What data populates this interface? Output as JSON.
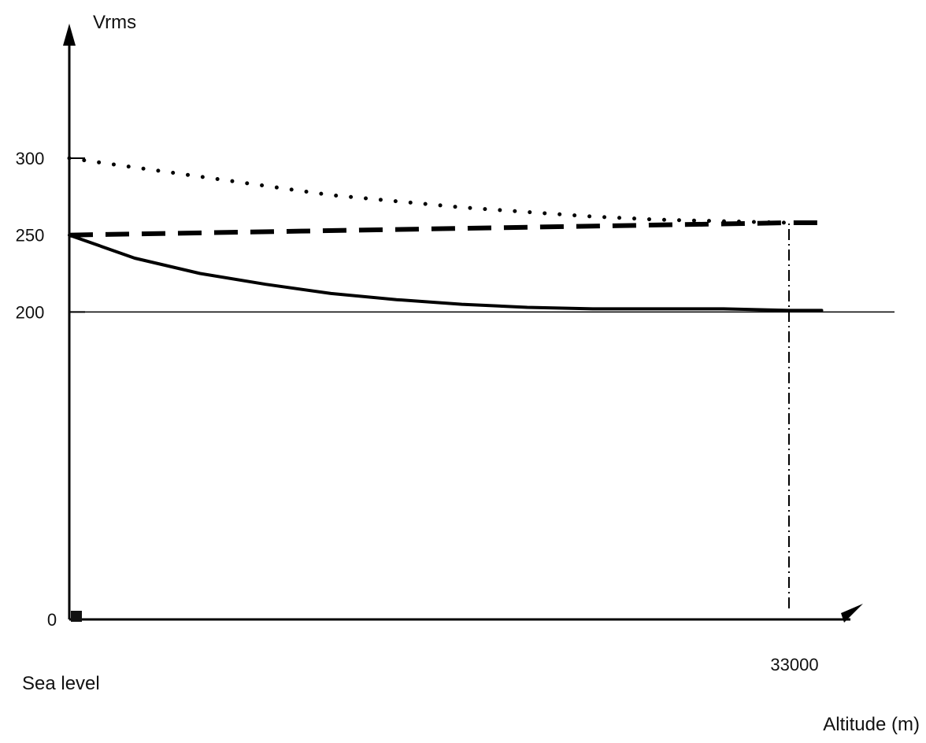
{
  "chart_data": {
    "type": "line",
    "ylabel": "Vrms",
    "xlabel": "Altitude (m)",
    "x_start_label": "Sea level",
    "xlim": [
      0,
      33000
    ],
    "ylim": [
      0,
      300
    ],
    "y_ticks": [
      {
        "value": 0,
        "label": "0"
      },
      {
        "value": 200,
        "label": "200"
      },
      {
        "value": 250,
        "label": "250"
      },
      {
        "value": 300,
        "label": "300"
      }
    ],
    "x_ticks": [
      {
        "value": 33000,
        "label": "33000"
      }
    ],
    "reference_lines": [
      {
        "axis": "y",
        "value": 200,
        "style": "solid-thin"
      },
      {
        "axis": "x",
        "value": 33000,
        "style": "dash-dot"
      }
    ],
    "series": [
      {
        "style": "dotted",
        "x": [
          0,
          3000,
          6000,
          9000,
          12000,
          15000,
          18000,
          21000,
          24000,
          27000,
          30000,
          33000,
          34500
        ],
        "y": [
          300,
          294,
          288,
          282,
          276,
          272,
          268,
          265,
          262,
          260,
          259,
          258,
          258
        ]
      },
      {
        "style": "dashed",
        "x": [
          0,
          33000,
          34500
        ],
        "y": [
          250,
          258,
          258
        ]
      },
      {
        "style": "solid",
        "x": [
          0,
          3000,
          6000,
          9000,
          12000,
          15000,
          18000,
          21000,
          24000,
          27000,
          30000,
          33000,
          34500
        ],
        "y": [
          250,
          235,
          225,
          218,
          212,
          208,
          205,
          203,
          202,
          202,
          202,
          201,
          201
        ]
      }
    ],
    "grid": false,
    "legend": "none"
  }
}
